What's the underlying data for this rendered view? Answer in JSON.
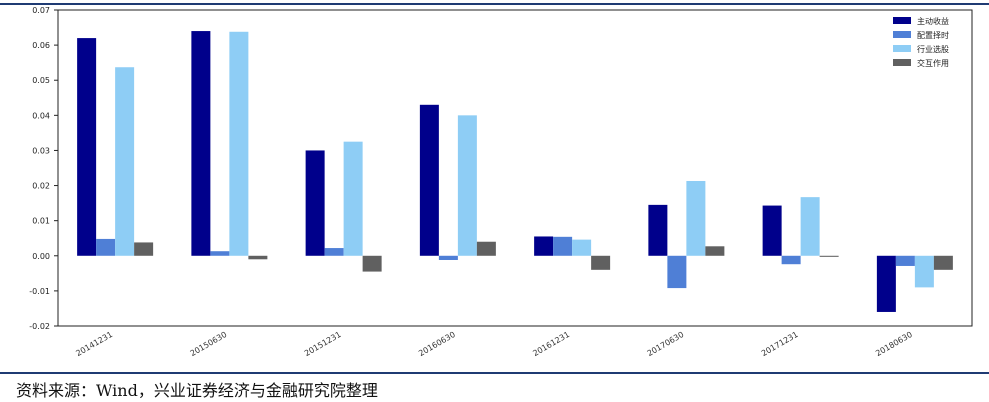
{
  "chart_data": {
    "type": "bar",
    "categories": [
      "20141231",
      "20150630",
      "20151231",
      "20160630",
      "20161231",
      "20170630",
      "20171231",
      "20180630"
    ],
    "series": [
      {
        "name": "主动收益",
        "color": "#00008b",
        "values": [
          0.062,
          0.064,
          0.03,
          0.043,
          0.0055,
          0.0145,
          0.0143,
          -0.016
        ]
      },
      {
        "name": "配置择时",
        "color": "#4f7fd6",
        "values": [
          0.0048,
          0.0013,
          0.0022,
          -0.0012,
          0.0054,
          -0.0092,
          -0.0024,
          -0.0029
        ]
      },
      {
        "name": "行业选股",
        "color": "#8ecdf5",
        "values": [
          0.0537,
          0.0638,
          0.0325,
          0.04,
          0.0046,
          0.0213,
          0.0167,
          -0.009
        ]
      },
      {
        "name": "交互作用",
        "color": "#606060",
        "values": [
          0.0038,
          -0.001,
          -0.0045,
          0.004,
          -0.004,
          0.0027,
          -0.0003,
          -0.004
        ]
      }
    ],
    "yticks": [
      "0.07",
      "0.06",
      "0.05",
      "0.04",
      "0.03",
      "0.02",
      "0.01",
      "0.00",
      "-0.01",
      "-0.02"
    ],
    "ylim": [
      -0.02,
      0.07
    ],
    "grid": false,
    "legend": "top-right"
  },
  "source_note": "资料来源：Wind，兴业证券经济与金融研究院整理"
}
